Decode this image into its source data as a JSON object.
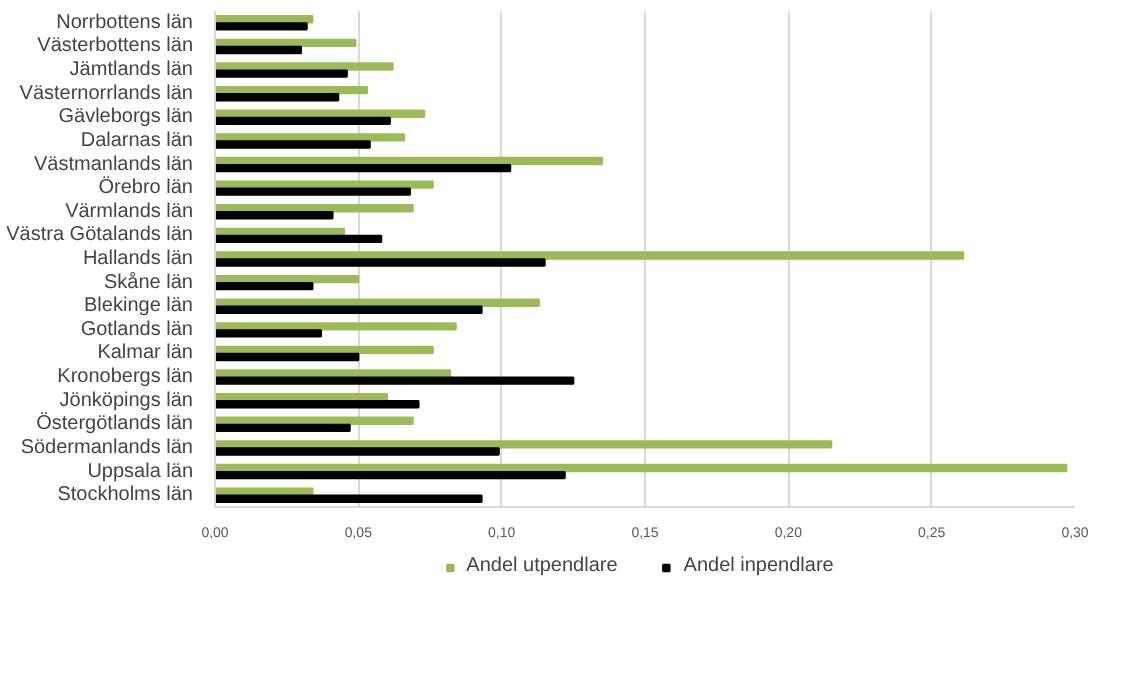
{
  "chart_data": {
    "type": "bar",
    "orientation": "horizontal",
    "categories": [
      "Norrbottens län",
      "Västerbottens län",
      "Jämtlands län",
      "Västernorrlands län",
      "Gävleborgs län",
      "Dalarnas län",
      "Västmanlands län",
      "Örebro län",
      "Värmlands län",
      "Västra Götalands län",
      "Hallands län",
      "Skåne län",
      "Blekinge län",
      "Gotlands län",
      "Kalmar län",
      "Kronobergs län",
      "Jönköpings län",
      "Östergötlands län",
      "Södermanlands län",
      "Uppsala län",
      "Stockholms län"
    ],
    "series": [
      {
        "name": "Andel utpendlare",
        "color": "#9bbb59",
        "values": [
          0.034,
          0.049,
          0.062,
          0.053,
          0.073,
          0.066,
          0.135,
          0.076,
          0.069,
          0.045,
          0.261,
          0.05,
          0.113,
          0.084,
          0.076,
          0.082,
          0.06,
          0.069,
          0.215,
          0.297,
          0.034
        ]
      },
      {
        "name": "Andel inpendlare",
        "color": "#000000",
        "values": [
          0.032,
          0.03,
          0.046,
          0.043,
          0.061,
          0.054,
          0.103,
          0.068,
          0.041,
          0.058,
          0.115,
          0.034,
          0.093,
          0.037,
          0.05,
          0.125,
          0.071,
          0.047,
          0.099,
          0.122,
          0.093
        ]
      }
    ],
    "xlim": [
      0,
      0.3
    ],
    "xticks": [
      {
        "value": 0,
        "label": "0,00"
      },
      {
        "value": 0.05,
        "label": "0,05"
      },
      {
        "value": 0.1,
        "label": "0,10"
      },
      {
        "value": 0.15,
        "label": "0,15"
      },
      {
        "value": 0.2,
        "label": "0,20"
      },
      {
        "value": 0.25,
        "label": "0,25"
      },
      {
        "value": 0.3,
        "label": "0,30"
      }
    ],
    "grid": "x",
    "legend": "bottom"
  }
}
